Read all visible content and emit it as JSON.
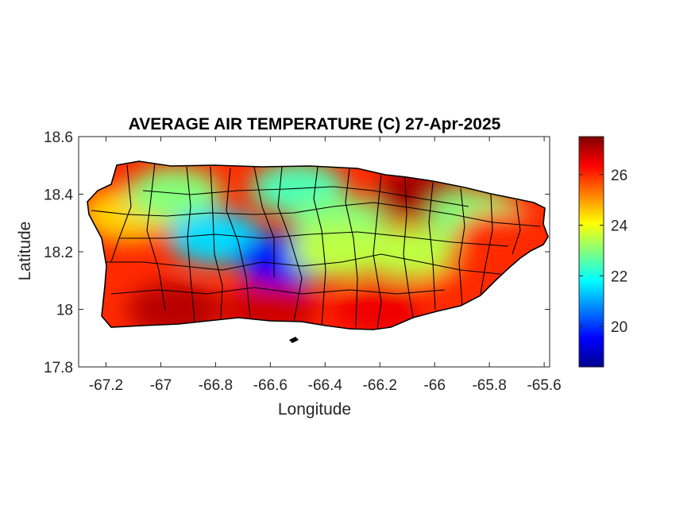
{
  "chart_data": {
    "type": "heatmap",
    "title": "AVERAGE AIR TEMPERATURE (C) 27-Apr-2025",
    "xlabel": "Longitude",
    "ylabel": "Latitude",
    "xlim": [
      -67.3,
      -65.58
    ],
    "ylim": [
      17.8,
      18.6
    ],
    "x_ticks": [
      -67.2,
      -67,
      -66.8,
      -66.6,
      -66.4,
      -66.2,
      -66,
      -65.8,
      -65.6
    ],
    "x_tick_labels": [
      "-67.2",
      "-67",
      "-66.8",
      "-66.6",
      "-66.4",
      "-66.2",
      "-66",
      "-65.8",
      "-65.6"
    ],
    "y_ticks": [
      17.8,
      18,
      18.2,
      18.4,
      18.6
    ],
    "y_tick_labels": [
      "17.8",
      "18",
      "18.2",
      "18.4",
      "18.6"
    ],
    "colorbar": {
      "colormap": "jet",
      "range": [
        18.4,
        27.5
      ],
      "ticks": [
        20,
        22,
        24,
        26
      ],
      "tick_labels": [
        "20",
        "22",
        "24",
        "26"
      ]
    },
    "temperature_regions": [
      {
        "lon": -67.12,
        "lat": 18.33,
        "temp": 24.5
      },
      {
        "lon": -66.95,
        "lat": 18.4,
        "temp": 23.0
      },
      {
        "lon": -66.8,
        "lat": 18.25,
        "temp": 21.5
      },
      {
        "lon": -66.55,
        "lat": 18.17,
        "temp": 19.5
      },
      {
        "lon": -66.5,
        "lat": 18.42,
        "temp": 22.5
      },
      {
        "lon": -66.35,
        "lat": 18.3,
        "temp": 23.0
      },
      {
        "lon": -66.35,
        "lat": 18.2,
        "temp": 23.5
      },
      {
        "lon": -66.1,
        "lat": 18.2,
        "temp": 23.5
      },
      {
        "lon": -66.05,
        "lat": 18.4,
        "temp": 27.2
      },
      {
        "lon": -65.85,
        "lat": 18.32,
        "temp": 23.0
      },
      {
        "lon": -65.75,
        "lat": 18.25,
        "temp": 26.0
      },
      {
        "lon": -66.95,
        "lat": 18.0,
        "temp": 27.0
      },
      {
        "lon": -66.6,
        "lat": 18.0,
        "temp": 26.8
      },
      {
        "lon": -66.2,
        "lat": 18.0,
        "temp": 26.5
      },
      {
        "lon": -65.9,
        "lat": 18.05,
        "temp": 26.0
      }
    ],
    "grid": false
  }
}
